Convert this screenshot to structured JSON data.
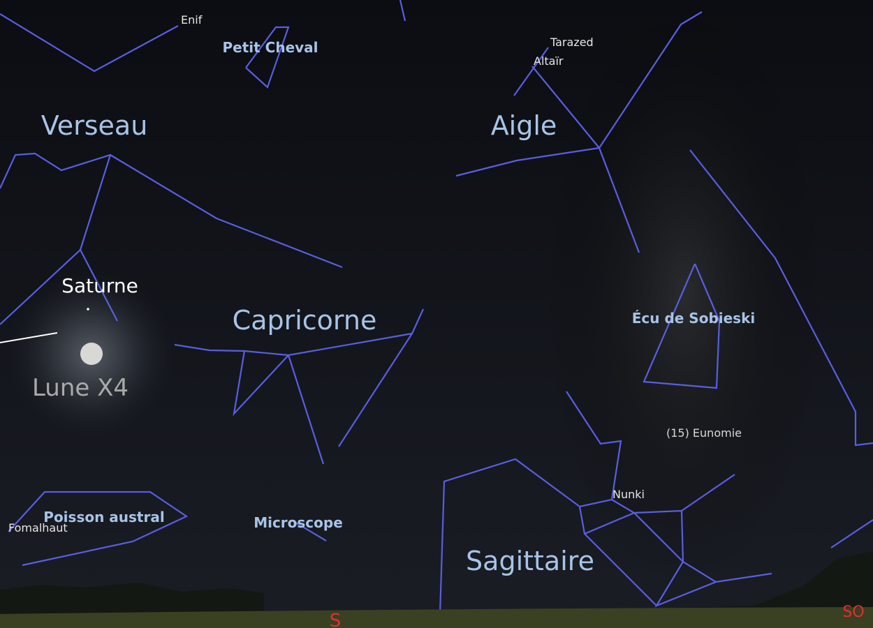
{
  "constellations": [
    {
      "label": "Verseau"
    },
    {
      "label": "Petit Cheval"
    },
    {
      "label": "Aigle"
    },
    {
      "label": "Capricorne"
    },
    {
      "label": "Écu de Sobieski"
    },
    {
      "label": "Poisson austral"
    },
    {
      "label": "Microscope"
    },
    {
      "label": "Sagittaire"
    }
  ],
  "stars": [
    {
      "label": "Enif"
    },
    {
      "label": "Tarazed"
    },
    {
      "label": "Altaïr"
    },
    {
      "label": "Fomalhaut"
    },
    {
      "label": "Nunki"
    }
  ],
  "objects": [
    {
      "label": "Saturne"
    },
    {
      "label": "Lune X4"
    },
    {
      "label": "(15) Eunomie"
    }
  ],
  "cardinals": [
    {
      "label": "S"
    },
    {
      "label": "SO"
    }
  ]
}
